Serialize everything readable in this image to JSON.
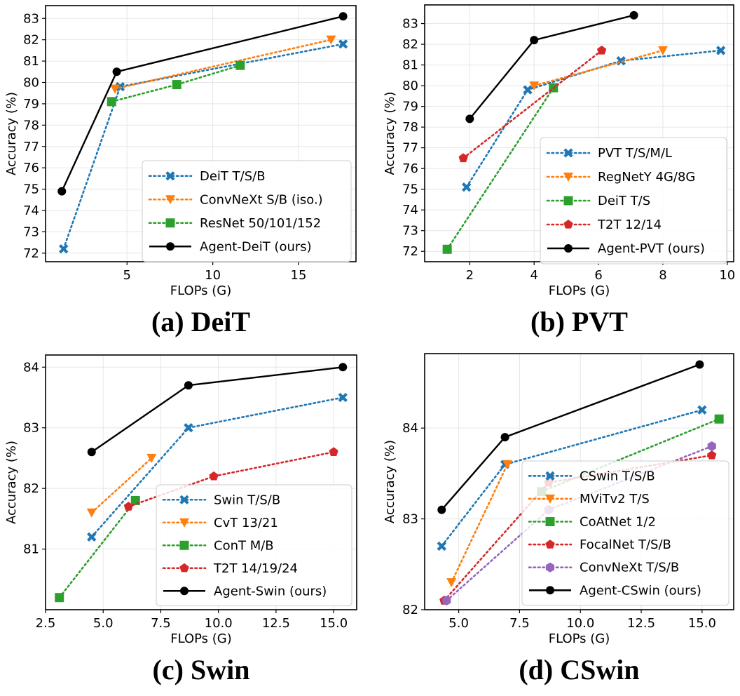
{
  "chart_data": [
    {
      "type": "line",
      "caption": "(a) DeiT",
      "xlabel": "FLOPs (G)",
      "ylabel": "Accuracy (%)",
      "xlim": [
        0.25,
        18.35
      ],
      "ylim": [
        71.6,
        83.6
      ],
      "xticks": [
        5,
        10,
        15
      ],
      "xtick_labels": [
        "5",
        "10",
        "15"
      ],
      "yticks": [
        72,
        73,
        74,
        75,
        76,
        77,
        78,
        79,
        80,
        81,
        82,
        83
      ],
      "ytick_labels": [
        "72",
        "73",
        "74",
        "75",
        "76",
        "77",
        "78",
        "79",
        "80",
        "81",
        "82",
        "83"
      ],
      "grid": true,
      "legend_position": "lower-right",
      "series": [
        {
          "name": "DeiT T/S/B",
          "color": "#1f77b4",
          "marker": "x",
          "line": "dotted",
          "x": [
            1.3,
            4.6,
            17.6
          ],
          "y": [
            72.2,
            79.8,
            81.8
          ]
        },
        {
          "name": "ConvNeXt S/B (iso.)",
          "color": "#ff7f0e",
          "marker": "triangle-down",
          "line": "dotted",
          "x": [
            4.3,
            16.9
          ],
          "y": [
            79.7,
            82.0
          ]
        },
        {
          "name": "ResNet 50/101/152",
          "color": "#2ca02c",
          "marker": "square",
          "line": "dotted",
          "x": [
            4.1,
            7.9,
            11.6
          ],
          "y": [
            79.1,
            79.9,
            80.8
          ]
        },
        {
          "name": "Agent-DeiT (ours)",
          "color": "#000000",
          "marker": "circle",
          "line": "solid",
          "x": [
            1.2,
            4.4,
            17.6
          ],
          "y": [
            74.9,
            80.5,
            83.1
          ]
        }
      ]
    },
    {
      "type": "line",
      "caption": "(b) PVT",
      "xlabel": "FLOPs (G)",
      "ylabel": "Accuracy (%)",
      "xlim": [
        0.6,
        10.2
      ],
      "ylim": [
        71.5,
        83.9
      ],
      "xticks": [
        2,
        4,
        6,
        8,
        10
      ],
      "xtick_labels": [
        "2",
        "4",
        "6",
        "8",
        "10"
      ],
      "yticks": [
        72,
        73,
        74,
        75,
        76,
        77,
        78,
        79,
        80,
        81,
        82,
        83
      ],
      "ytick_labels": [
        "72",
        "73",
        "74",
        "75",
        "76",
        "77",
        "78",
        "79",
        "80",
        "81",
        "82",
        "83"
      ],
      "grid": true,
      "legend_position": "lower-right",
      "series": [
        {
          "name": "PVT T/S/M/L",
          "color": "#1f77b4",
          "marker": "x",
          "line": "dotted",
          "x": [
            1.9,
            3.8,
            6.7,
            9.8
          ],
          "y": [
            75.1,
            79.8,
            81.2,
            81.7
          ]
        },
        {
          "name": "RegNetY 4G/8G",
          "color": "#ff7f0e",
          "marker": "triangle-down",
          "line": "dotted",
          "x": [
            4.0,
            8.0
          ],
          "y": [
            80.0,
            81.7
          ]
        },
        {
          "name": "DeiT T/S",
          "color": "#2ca02c",
          "marker": "square",
          "line": "dotted",
          "x": [
            1.3,
            4.6
          ],
          "y": [
            72.1,
            79.9
          ]
        },
        {
          "name": "T2T 12/14",
          "color": "#d62728",
          "marker": "pentagon",
          "line": "dotted",
          "x": [
            1.8,
            6.1
          ],
          "y": [
            76.5,
            81.7
          ]
        },
        {
          "name": "Agent-PVT (ours)",
          "color": "#000000",
          "marker": "circle",
          "line": "solid",
          "x": [
            2.0,
            4.0,
            7.1
          ],
          "y": [
            78.4,
            82.2,
            83.4
          ]
        }
      ]
    },
    {
      "type": "line",
      "caption": "(c) Swin",
      "xlabel": "FLOPs (G)",
      "ylabel": "Accuracy (%)",
      "xlim": [
        2.5,
        16.0
      ],
      "ylim": [
        80.0,
        84.2
      ],
      "xticks": [
        2.5,
        5.0,
        7.5,
        10.0,
        12.5,
        15.0
      ],
      "xtick_labels": [
        "2.5",
        "5.0",
        "7.5",
        "10.0",
        "12.5",
        "15.0"
      ],
      "yticks": [
        81,
        82,
        83,
        84
      ],
      "ytick_labels": [
        "81",
        "82",
        "83",
        "84"
      ],
      "grid": true,
      "legend_position": "lower-right",
      "series": [
        {
          "name": "Swin T/S/B",
          "color": "#1f77b4",
          "marker": "x",
          "line": "dotted",
          "x": [
            4.5,
            8.7,
            15.4
          ],
          "y": [
            81.2,
            83.0,
            83.5
          ]
        },
        {
          "name": "CvT 13/21",
          "color": "#ff7f0e",
          "marker": "triangle-down",
          "line": "dotted",
          "x": [
            4.5,
            7.1
          ],
          "y": [
            81.6,
            82.5
          ]
        },
        {
          "name": "ConT M/B",
          "color": "#2ca02c",
          "marker": "square",
          "line": "dotted",
          "x": [
            3.1,
            6.4
          ],
          "y": [
            80.2,
            81.8
          ]
        },
        {
          "name": "T2T 14/19/24",
          "color": "#d62728",
          "marker": "pentagon",
          "line": "dotted",
          "x": [
            6.1,
            9.8,
            15.0
          ],
          "y": [
            81.7,
            82.2,
            82.6
          ]
        },
        {
          "name": "Agent-Swin (ours)",
          "color": "#000000",
          "marker": "circle",
          "line": "solid",
          "x": [
            4.5,
            8.7,
            15.4
          ],
          "y": [
            82.6,
            83.7,
            84.0
          ]
        }
      ]
    },
    {
      "type": "line",
      "caption": "(d) CSwin",
      "xlabel": "FLOPs (G)",
      "ylabel": "Accuracy (%)",
      "xlim": [
        3.6,
        16.3
      ],
      "ylim": [
        82.0,
        84.82
      ],
      "xticks": [
        5.0,
        7.5,
        10.0,
        12.5,
        15.0
      ],
      "xtick_labels": [
        "5.0",
        "7.5",
        "10.0",
        "12.5",
        "15.0"
      ],
      "yticks": [
        82,
        83,
        84
      ],
      "ytick_labels": [
        "82",
        "83",
        "84"
      ],
      "grid": true,
      "legend_position": "lower-right",
      "series": [
        {
          "name": "CSwin T/S/B",
          "color": "#1f77b4",
          "marker": "x",
          "line": "dotted",
          "x": [
            4.3,
            6.9,
            15.0
          ],
          "y": [
            82.7,
            83.6,
            84.2
          ]
        },
        {
          "name": "MViTv2 T/S",
          "color": "#ff7f0e",
          "marker": "triangle-down",
          "line": "dotted",
          "x": [
            4.7,
            7.0
          ],
          "y": [
            82.3,
            83.6
          ]
        },
        {
          "name": "CoAtNet 1/2",
          "color": "#2ca02c",
          "marker": "square",
          "line": "dotted",
          "x": [
            8.4,
            15.7
          ],
          "y": [
            83.3,
            84.1
          ]
        },
        {
          "name": "FocalNet T/S/B",
          "color": "#d62728",
          "marker": "pentagon",
          "line": "dotted",
          "x": [
            4.4,
            8.7,
            15.4
          ],
          "y": [
            82.1,
            83.4,
            83.7
          ]
        },
        {
          "name": "ConvNeXt T/S/B",
          "color": "#9467bd",
          "marker": "hexagon",
          "line": "dotted",
          "x": [
            4.5,
            8.7,
            15.4
          ],
          "y": [
            82.1,
            83.1,
            83.8
          ]
        },
        {
          "name": "Agent-CSwin (ours)",
          "color": "#000000",
          "marker": "circle",
          "line": "solid",
          "x": [
            4.3,
            6.9,
            14.9
          ],
          "y": [
            83.1,
            83.9,
            84.7
          ]
        }
      ]
    }
  ]
}
